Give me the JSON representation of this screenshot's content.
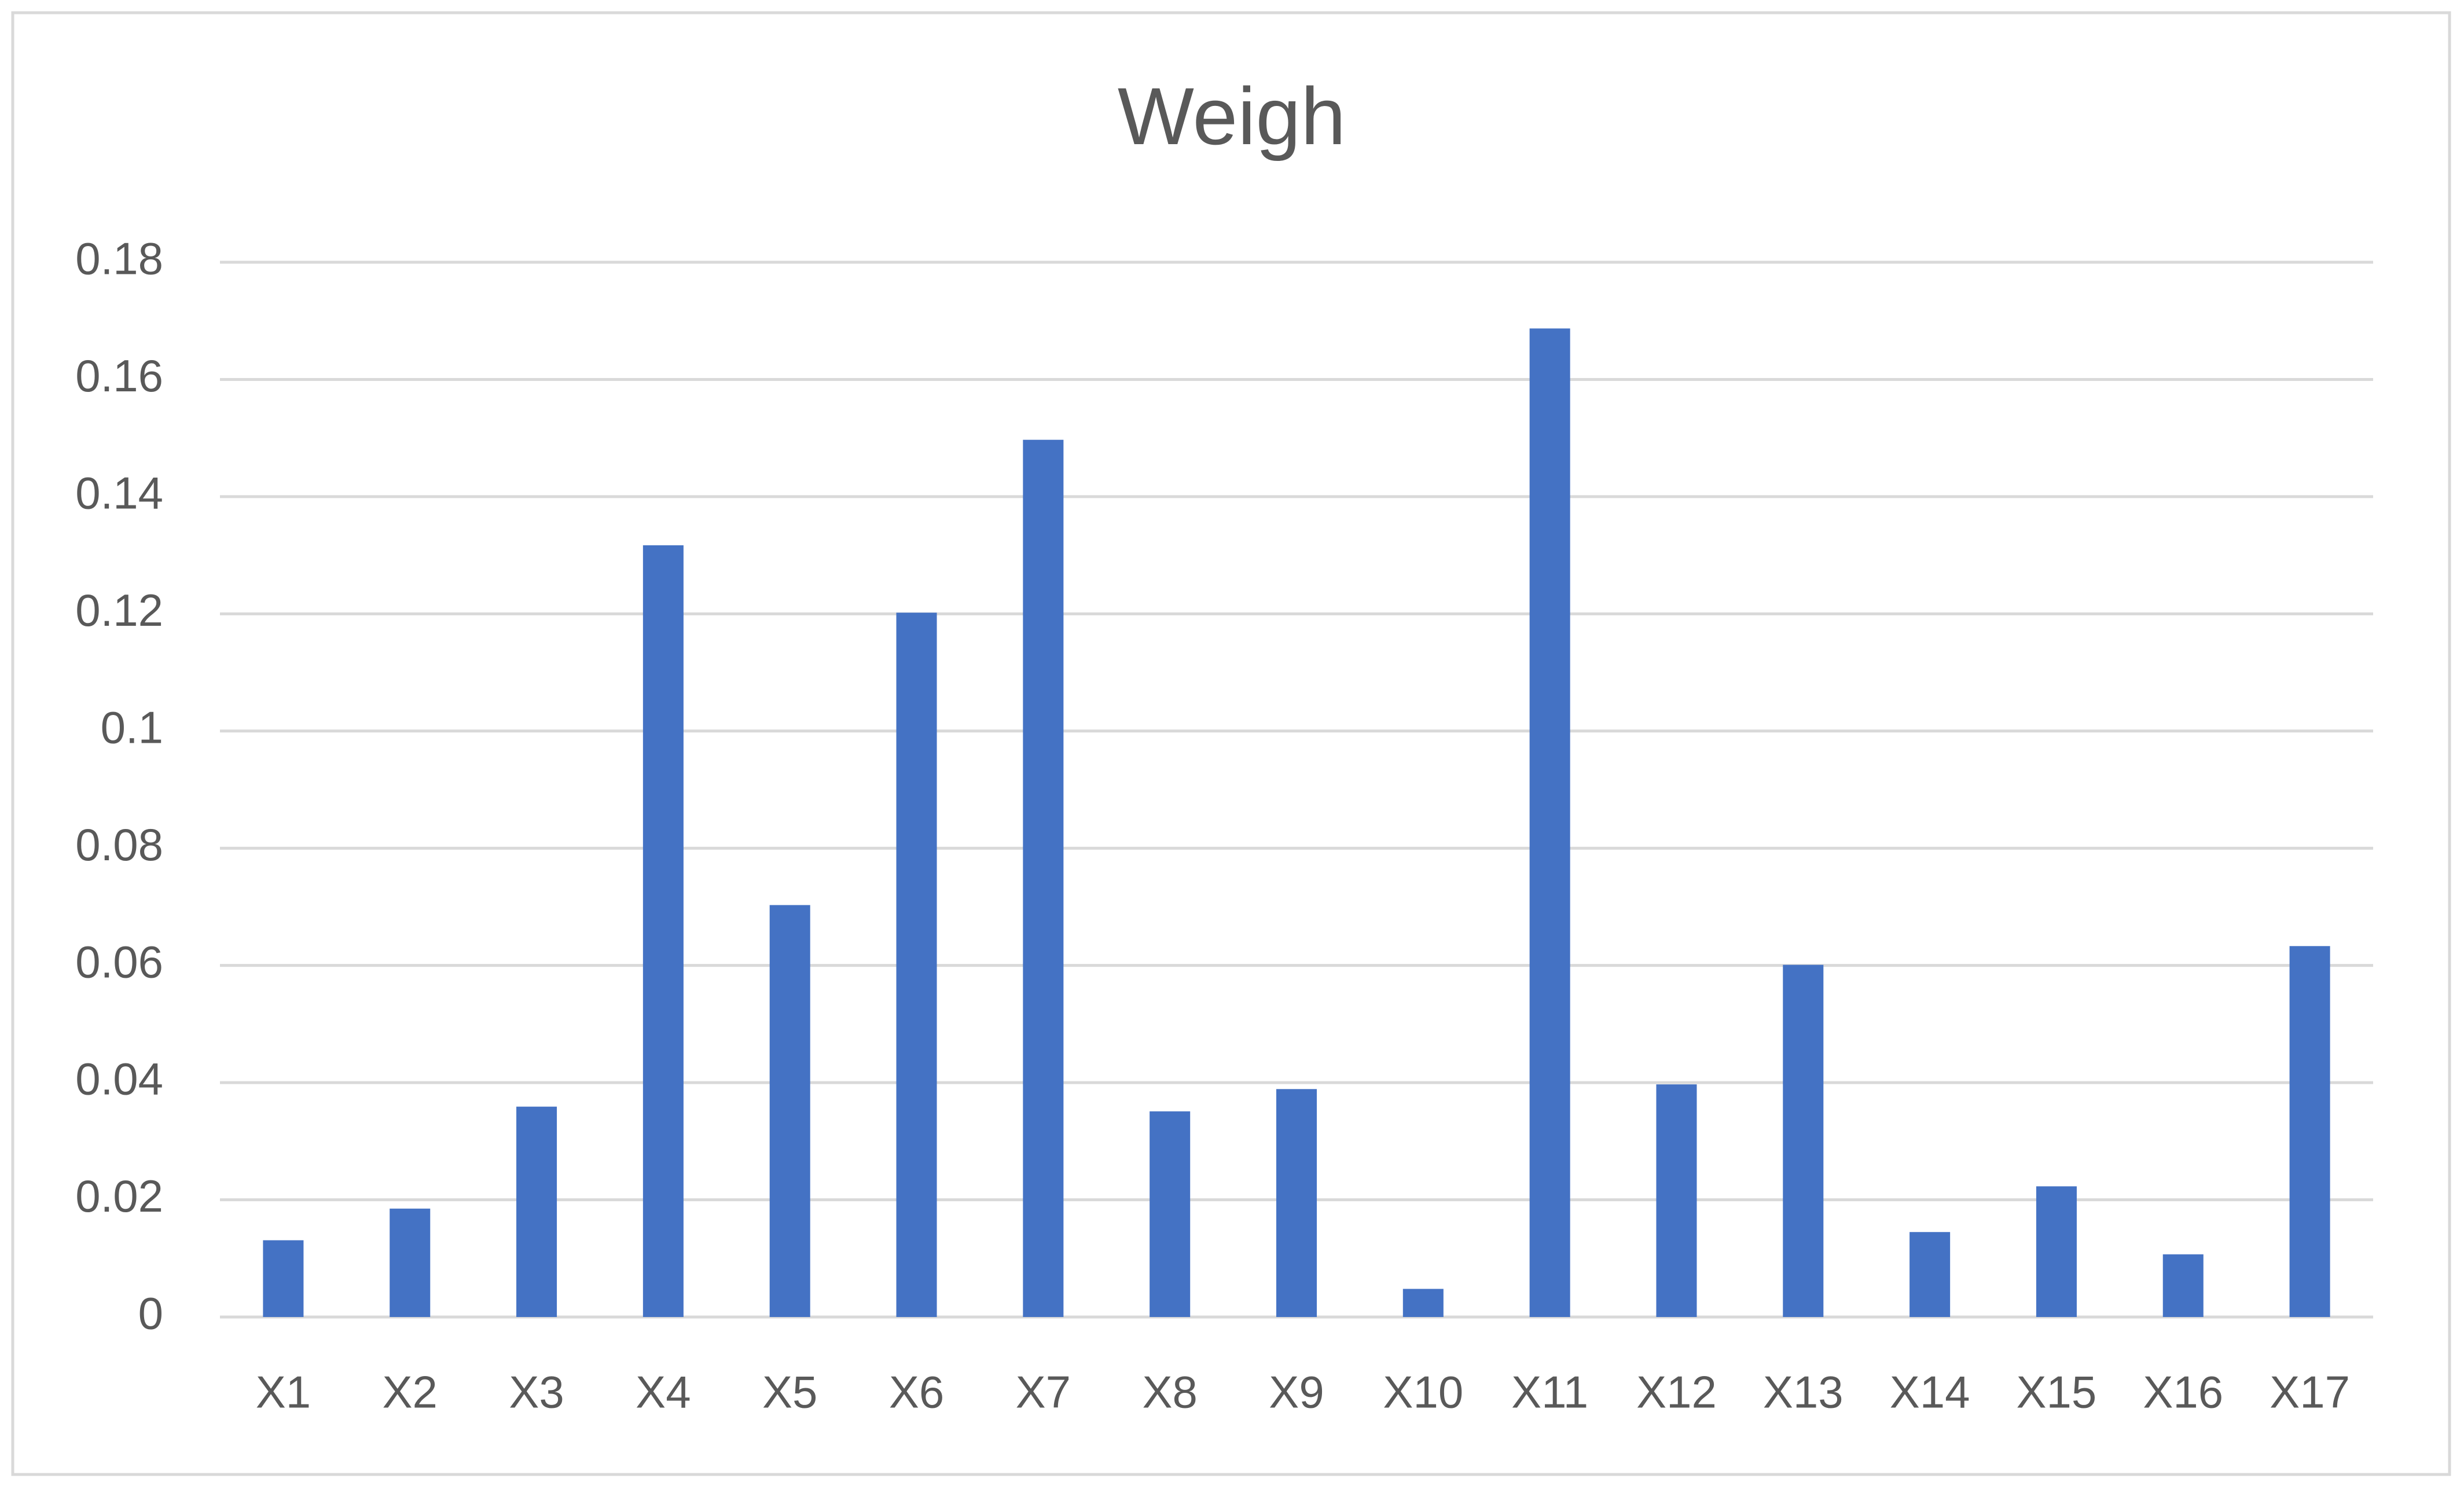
{
  "chart_data": {
    "type": "bar",
    "title": "Weigh",
    "categories": [
      "X1",
      "X2",
      "X3",
      "X4",
      "X5",
      "X6",
      "X7",
      "X8",
      "X9",
      "X10",
      "X11",
      "X12",
      "X13",
      "X14",
      "X15",
      "X16",
      "X17"
    ],
    "values": [
      0.0131,
      0.0185,
      0.0359,
      0.1317,
      0.0703,
      0.1202,
      0.1497,
      0.0351,
      0.0389,
      0.0048,
      0.1687,
      0.0397,
      0.0601,
      0.0145,
      0.0223,
      0.0107,
      0.0633
    ],
    "color": "#4472c4",
    "ylim": [
      0,
      0.18
    ],
    "yticks": [
      0,
      0.02,
      0.04,
      0.06,
      0.08,
      0.1,
      0.12,
      0.14,
      0.16,
      0.18
    ],
    "grid": true
  }
}
